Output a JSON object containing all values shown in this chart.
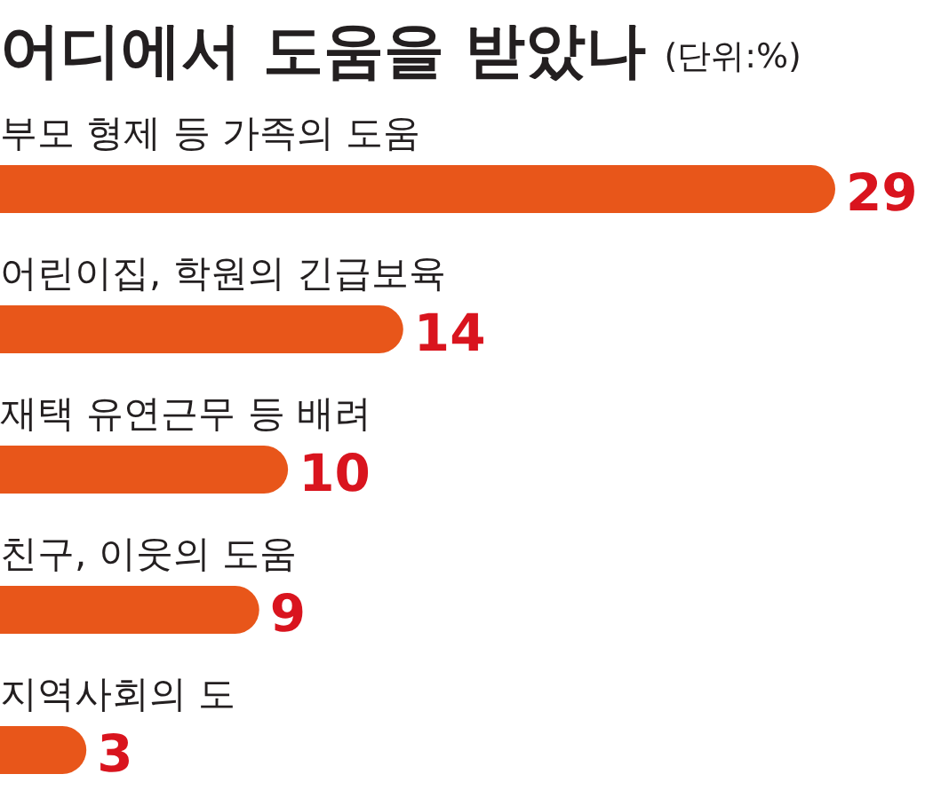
{
  "chart_data": {
    "type": "bar",
    "orientation": "horizontal",
    "title": "어디에서 도움을 받았나",
    "subtitle": "(단위:%)",
    "categories": [
      "부모 형제 등 가족의 도움",
      "어린이집, 학원의 긴급보육",
      "재택 유연근무 등 배려",
      "친구, 이웃의 도움",
      "지역사회의 도"
    ],
    "values": [
      29,
      14,
      10,
      9,
      3
    ],
    "color": "#e8561a",
    "data_labels": true
  }
}
